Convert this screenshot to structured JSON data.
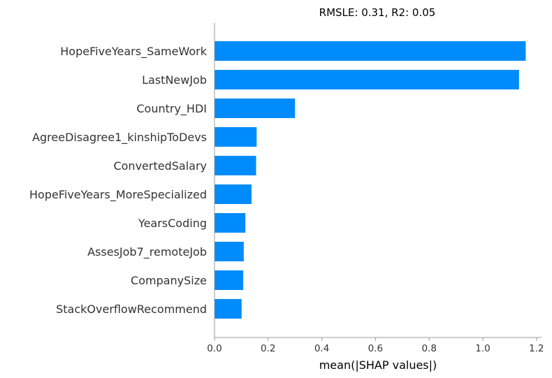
{
  "chart_data": {
    "type": "bar",
    "orientation": "horizontal",
    "title": "RMSLE: 0.31, R2: 0.05",
    "xlabel": "mean(|SHAP values|)",
    "ylabel": "",
    "xlim": [
      0,
      1.22
    ],
    "xticks": [
      0.0,
      0.2,
      0.4,
      0.6,
      0.8,
      1.0,
      1.2
    ],
    "xtick_labels": [
      "0.0",
      "0.2",
      "0.4",
      "0.6",
      "0.8",
      "1.0",
      "1.2"
    ],
    "categories": [
      "HopeFiveYears_SameWork",
      "LastNewJob",
      "Country_HDI",
      "AgreeDisagree1_kinshipToDevs",
      "ConvertedSalary",
      "HopeFiveYears_MoreSpecialized",
      "YearsCoding",
      "AssesJob7_remoteJob",
      "CompanySize",
      "StackOverflowRecommend"
    ],
    "values": [
      1.16,
      1.135,
      0.3,
      0.157,
      0.155,
      0.138,
      0.115,
      0.109,
      0.107,
      0.101
    ],
    "bar_color": "#008bfb",
    "axis_color": "#999999",
    "grid": false
  }
}
